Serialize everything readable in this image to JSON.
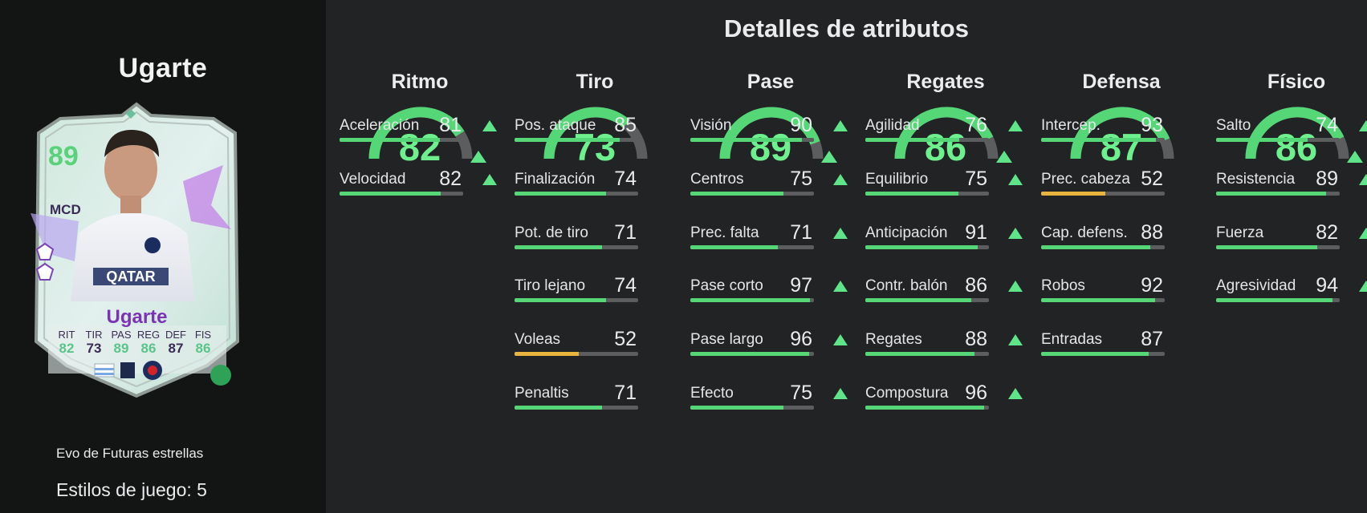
{
  "player": {
    "name": "Ugarte",
    "card": {
      "rating": "89",
      "position": "MCD",
      "name": "Ugarte",
      "stats": [
        {
          "label": "RIT",
          "value": "82"
        },
        {
          "label": "TIR",
          "value": "73"
        },
        {
          "label": "PAS",
          "value": "89"
        },
        {
          "label": "REG",
          "value": "86"
        },
        {
          "label": "DEF",
          "value": "87"
        },
        {
          "label": "FIS",
          "value": "86"
        }
      ],
      "sponsor_text": "QATAR"
    },
    "evo_title": "Evo de Futuras estrellas",
    "playstyles": "Estilos de juego: 5"
  },
  "main_title": "Detalles de atributos",
  "colors": {
    "accent_green": "#56d777",
    "value_green": "#6ef08e",
    "low_yellow": "#e8b43d",
    "track_grey": "#5b5d5e"
  },
  "categories": [
    {
      "name": "Ritmo",
      "value": "82",
      "upgraded": true,
      "attributes": [
        {
          "name": "Aceleración",
          "value": "81",
          "upgraded": true
        },
        {
          "name": "Velocidad",
          "value": "82",
          "upgraded": true
        }
      ]
    },
    {
      "name": "Tiro",
      "value": "73",
      "upgraded": false,
      "attributes": [
        {
          "name": "Pos. ataque",
          "value": "85",
          "upgraded": false
        },
        {
          "name": "Finalización",
          "value": "74",
          "upgraded": false
        },
        {
          "name": "Pot. de tiro",
          "value": "71",
          "upgraded": false
        },
        {
          "name": "Tiro lejano",
          "value": "74",
          "upgraded": false
        },
        {
          "name": "Voleas",
          "value": "52",
          "upgraded": false
        },
        {
          "name": "Penaltis",
          "value": "71",
          "upgraded": false
        }
      ]
    },
    {
      "name": "Pase",
      "value": "89",
      "upgraded": true,
      "attributes": [
        {
          "name": "Visión",
          "value": "90",
          "upgraded": true
        },
        {
          "name": "Centros",
          "value": "75",
          "upgraded": true
        },
        {
          "name": "Prec. falta",
          "value": "71",
          "upgraded": true
        },
        {
          "name": "Pase corto",
          "value": "97",
          "upgraded": true
        },
        {
          "name": "Pase largo",
          "value": "96",
          "upgraded": true
        },
        {
          "name": "Efecto",
          "value": "75",
          "upgraded": true
        }
      ]
    },
    {
      "name": "Regates",
      "value": "86",
      "upgraded": true,
      "attributes": [
        {
          "name": "Agilidad",
          "value": "76",
          "upgraded": true
        },
        {
          "name": "Equilibrio",
          "value": "75",
          "upgraded": true
        },
        {
          "name": "Anticipación",
          "value": "91",
          "upgraded": true
        },
        {
          "name": "Contr. balón",
          "value": "86",
          "upgraded": true
        },
        {
          "name": "Regates",
          "value": "88",
          "upgraded": true
        },
        {
          "name": "Compostura",
          "value": "96",
          "upgraded": true
        }
      ]
    },
    {
      "name": "Defensa",
      "value": "87",
      "upgraded": false,
      "attributes": [
        {
          "name": "Intercep.",
          "value": "93",
          "upgraded": false
        },
        {
          "name": "Prec. cabeza",
          "value": "52",
          "upgraded": false
        },
        {
          "name": "Cap. defens.",
          "value": "88",
          "upgraded": false
        },
        {
          "name": "Robos",
          "value": "92",
          "upgraded": false
        },
        {
          "name": "Entradas",
          "value": "87",
          "upgraded": false
        }
      ]
    },
    {
      "name": "Físico",
      "value": "86",
      "upgraded": true,
      "attributes": [
        {
          "name": "Salto",
          "value": "74",
          "upgraded": true
        },
        {
          "name": "Resistencia",
          "value": "89",
          "upgraded": true
        },
        {
          "name": "Fuerza",
          "value": "82",
          "upgraded": true
        },
        {
          "name": "Agresividad",
          "value": "94",
          "upgraded": true
        }
      ]
    }
  ]
}
